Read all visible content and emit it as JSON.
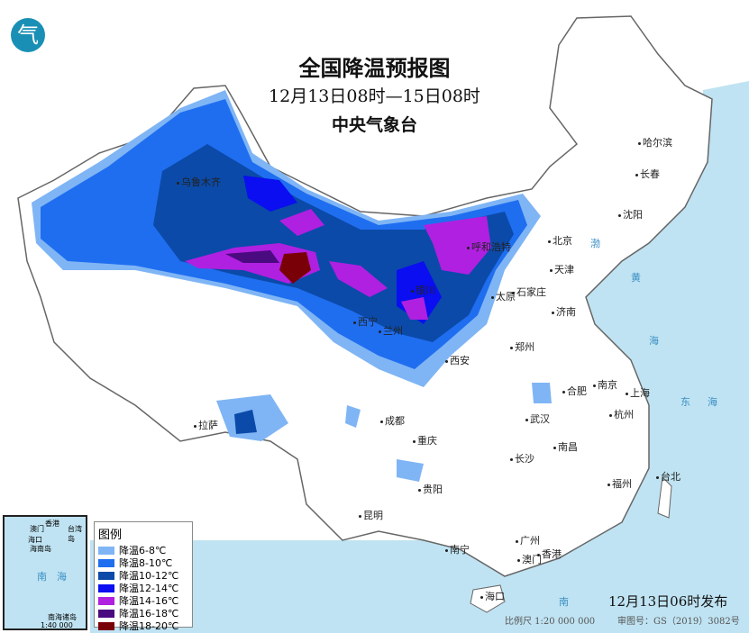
{
  "header": {
    "title": "全国降温预报图",
    "period": "12月13日08时—15日08时",
    "agency": "中央气象台"
  },
  "logo": {
    "icon": "cma-logo-icon"
  },
  "legend": {
    "title": "图例",
    "items": [
      {
        "label": "降温6-8℃",
        "color": "#7fb5f5"
      },
      {
        "label": "降温8-10℃",
        "color": "#1f6ef0"
      },
      {
        "label": "降温10-12℃",
        "color": "#0b4aa8"
      },
      {
        "label": "降温12-14℃",
        "color": "#0a0ef0"
      },
      {
        "label": "降温14-16℃",
        "color": "#b020e0"
      },
      {
        "label": "降温16-18℃",
        "color": "#4a0a80"
      },
      {
        "label": "降温18-20℃",
        "color": "#7a0008"
      }
    ]
  },
  "cities": [
    "乌鲁木齐",
    "呼和浩特",
    "北京",
    "天津",
    "哈尔滨",
    "长春",
    "沈阳",
    "石家庄",
    "太原",
    "银川",
    "济南",
    "西宁",
    "兰州",
    "郑州",
    "西安",
    "合肥",
    "南京",
    "上海",
    "武汉",
    "杭州",
    "拉萨",
    "成都",
    "重庆",
    "长沙",
    "南昌",
    "贵阳",
    "福州",
    "台北",
    "昆明",
    "南宁",
    "广州",
    "香港",
    "澳门",
    "海口"
  ],
  "seas": {
    "yellow": "黄",
    "sea": "海",
    "east": "东",
    "bohai": "渤",
    "nan": "南"
  },
  "inset": {
    "labels": [
      "澳门",
      "香港",
      "台湾岛",
      "海口",
      "海南岛",
      "南",
      "海",
      "南海诸岛"
    ],
    "scale": "1:40 000 000"
  },
  "footer": {
    "published": "12月13日06时发布",
    "scale": "比例尺 1:20 000 000",
    "review": "审图号：GS（2019）3082号"
  }
}
